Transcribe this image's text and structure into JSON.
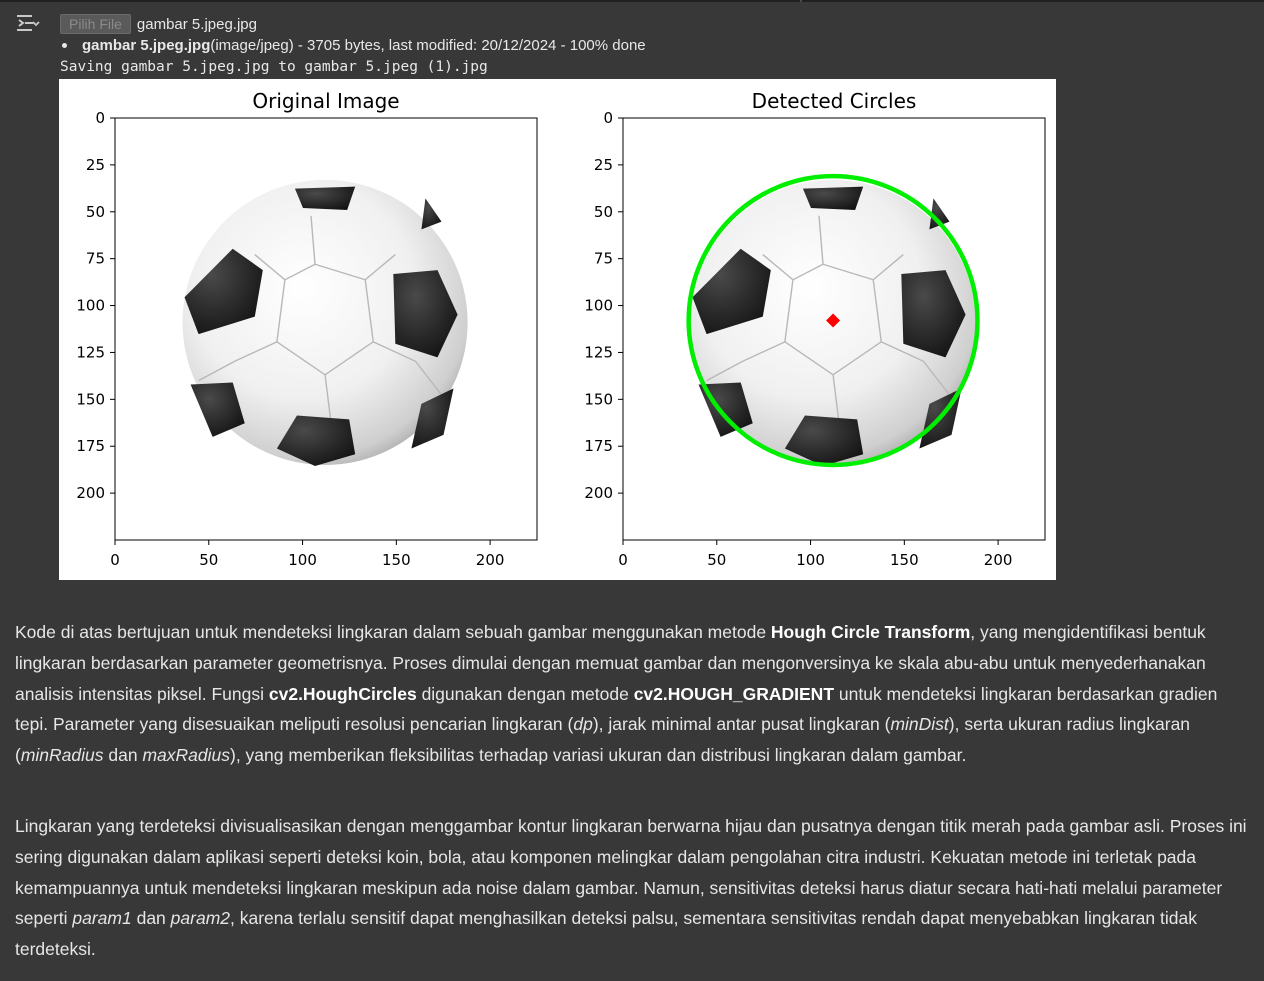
{
  "upload": {
    "button_label": "Pilih File",
    "chosen_file": "gambar 5.jpeg.jpg"
  },
  "file_info": {
    "name": "gambar 5.jpeg.jpg",
    "details": "(image/jpeg) - 3705 bytes, last modified: 20/12/2024 - 100% done"
  },
  "saving_text": "Saving gambar 5.jpeg.jpg to gambar 5.jpeg (1).jpg",
  "chart_data": [
    {
      "type": "image",
      "title": "Original Image",
      "x_ticks": [
        "0",
        "50",
        "100",
        "150",
        "200"
      ],
      "y_ticks": [
        "0",
        "25",
        "50",
        "75",
        "100",
        "125",
        "150",
        "175",
        "200"
      ],
      "xlim": [
        0,
        225
      ],
      "ylim": [
        225,
        0
      ],
      "content": "soccer ball"
    },
    {
      "type": "image",
      "title": "Detected Circles",
      "x_ticks": [
        "0",
        "50",
        "100",
        "150",
        "200"
      ],
      "y_ticks": [
        "0",
        "25",
        "50",
        "75",
        "100",
        "125",
        "150",
        "175",
        "200"
      ],
      "xlim": [
        0,
        225
      ],
      "ylim": [
        225,
        0
      ],
      "content": "soccer ball with detected circle",
      "circle": {
        "cx": 112,
        "cy": 108,
        "r": 77,
        "color": "#00ee00"
      },
      "center_marker": {
        "x": 112,
        "y": 108,
        "color": "#ff0000"
      }
    }
  ],
  "paragraph1": [
    {
      "t": "Kode di atas bertujuan untuk mendeteksi lingkaran dalam sebuah gambar menggunakan metode "
    },
    {
      "t": "Hough Circle Transform",
      "s": "b"
    },
    {
      "t": ", yang mengidentifikasi bentuk lingkaran berdasarkan parameter geometrisnya. Proses dimulai dengan memuat gambar dan mengonversinya ke skala abu-abu untuk menyederhanakan analisis intensitas piksel. Fungsi "
    },
    {
      "t": "cv2.HoughCircles",
      "s": "b"
    },
    {
      "t": " digunakan dengan metode "
    },
    {
      "t": "cv2.HOUGH_GRADIENT",
      "s": "b"
    },
    {
      "t": " untuk mendeteksi lingkaran berdasarkan gradien tepi. Parameter yang disesuaikan meliputi resolusi pencarian lingkaran ("
    },
    {
      "t": "dp",
      "s": "i"
    },
    {
      "t": "), jarak minimal antar pusat lingkaran ("
    },
    {
      "t": "minDist",
      "s": "i"
    },
    {
      "t": "), serta ukuran radius lingkaran ("
    },
    {
      "t": "minRadius",
      "s": "i"
    },
    {
      "t": " dan "
    },
    {
      "t": "maxRadius",
      "s": "i"
    },
    {
      "t": "), yang memberikan fleksibilitas terhadap variasi ukuran dan distribusi lingkaran dalam gambar."
    }
  ],
  "paragraph2": [
    {
      "t": "Lingkaran yang terdeteksi divisualisasikan dengan menggambar kontur lingkaran berwarna hijau dan pusatnya dengan titik merah pada gambar asli. Proses ini sering digunakan dalam aplikasi seperti deteksi koin, bola, atau komponen melingkar dalam pengolahan citra industri. Kekuatan metode ini terletak pada kemampuannya untuk mendeteksi lingkaran meskipun ada noise dalam gambar. Namun, sensitivitas deteksi harus diatur secara hati-hati melalui parameter seperti "
    },
    {
      "t": "param1",
      "s": "i"
    },
    {
      "t": " dan "
    },
    {
      "t": "param2",
      "s": "i"
    },
    {
      "t": ", karena terlalu sensitif dapat menghasilkan deteksi palsu, sementara sensitivitas rendah dapat menyebabkan lingkaran tidak terdeteksi."
    }
  ],
  "icons": {
    "output_toggle": "output-collapse-icon"
  }
}
